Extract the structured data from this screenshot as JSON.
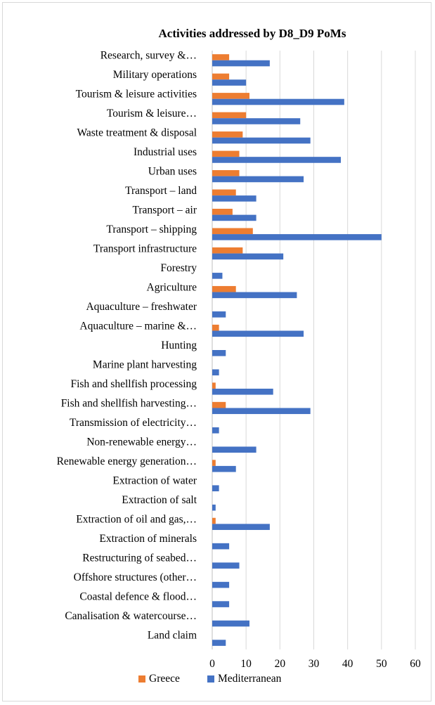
{
  "chart_data": {
    "type": "bar",
    "orientation": "horizontal",
    "title": "Activities  addressed by D8_D9 PoMs",
    "xlabel": "",
    "ylabel": "",
    "xlim": [
      0,
      60
    ],
    "ticks": [
      0,
      10,
      20,
      30,
      40,
      50,
      60
    ],
    "grid": true,
    "legend_position": "bottom",
    "categories": [
      "Research, survey &…",
      "Military operations",
      "Tourism & leisure activities",
      "Tourism & leisure…",
      "Waste treatment & disposal",
      "Industrial uses",
      "Urban uses",
      "Transport – land",
      "Transport – air",
      "Transport – shipping",
      "Transport infrastructure",
      "Forestry",
      "Agriculture",
      "Aquaculture – freshwater",
      "Aquaculture – marine &…",
      "Hunting",
      "Marine plant harvesting",
      "Fish and shellfish processing",
      "Fish and shellfish harvesting…",
      "Transmission of electricity…",
      "Non-renewable energy…",
      "Renewable energy generation…",
      "Extraction of water",
      "Extraction of salt",
      "Extraction of oil and gas,…",
      "Extraction of minerals",
      "Restructuring of seabed…",
      "Offshore structures (other…",
      "Coastal defence & flood…",
      "Canalisation & watercourse…",
      "Land claim"
    ],
    "series": [
      {
        "name": "Greece",
        "color": "#ed7d31",
        "values": [
          5,
          5,
          11,
          10,
          9,
          8,
          8,
          7,
          6,
          12,
          9,
          0,
          7,
          0,
          2,
          0,
          0,
          1,
          4,
          0,
          0,
          1,
          0,
          0,
          1,
          0,
          0,
          0,
          0,
          0,
          0
        ]
      },
      {
        "name": "Mediterranean",
        "color": "#4472c4",
        "values": [
          17,
          10,
          39,
          26,
          29,
          38,
          27,
          13,
          13,
          50,
          21,
          3,
          25,
          4,
          27,
          4,
          2,
          18,
          29,
          2,
          13,
          7,
          2,
          1,
          17,
          5,
          8,
          5,
          5,
          11,
          4
        ]
      }
    ]
  }
}
